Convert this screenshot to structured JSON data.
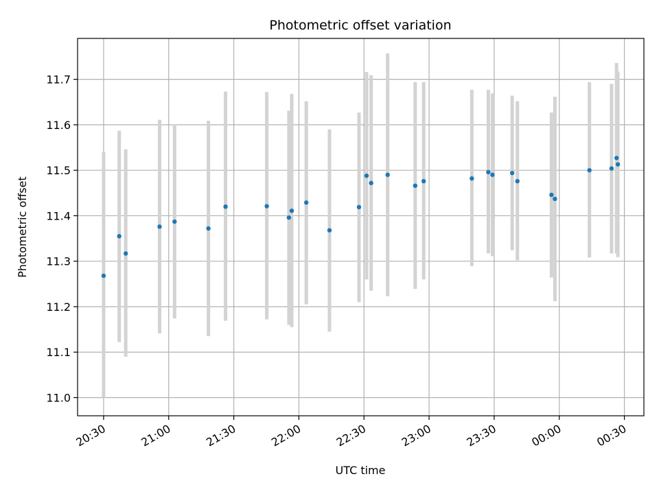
{
  "chart_data": {
    "type": "scatter",
    "title": "Photometric offset variation",
    "xlabel": "UTC time",
    "ylabel": "Photometric offset",
    "x_axis": {
      "type": "time",
      "range": [
        "20:18",
        "00:39"
      ],
      "ticks": [
        "20:30",
        "21:00",
        "21:30",
        "22:00",
        "22:30",
        "23:00",
        "23:30",
        "00:00",
        "00:30"
      ]
    },
    "y_axis": {
      "range": [
        10.96,
        11.79
      ],
      "ticks": [
        "11.0",
        "11.1",
        "11.2",
        "11.3",
        "11.4",
        "11.5",
        "11.6",
        "11.7"
      ]
    },
    "grid": true,
    "colors": {
      "point": "#1f77b4",
      "errorbar": "#d3d3d3",
      "grid": "#b0b0b0"
    },
    "series": [
      {
        "points": [
          {
            "x": "20:30:00",
            "y": 11.268,
            "err_low": 11.0,
            "err_high": 11.54
          },
          {
            "x": "20:37:12",
            "y": 11.355,
            "err_low": 11.122,
            "err_high": 11.587
          },
          {
            "x": "20:40:12",
            "y": 11.317,
            "err_low": 11.09,
            "err_high": 11.546
          },
          {
            "x": "20:55:48",
            "y": 11.376,
            "err_low": 11.141,
            "err_high": 11.611
          },
          {
            "x": "21:02:42",
            "y": 11.387,
            "err_low": 11.174,
            "err_high": 11.601
          },
          {
            "x": "21:18:18",
            "y": 11.372,
            "err_low": 11.135,
            "err_high": 11.609
          },
          {
            "x": "21:26:12",
            "y": 11.42,
            "err_low": 11.169,
            "err_high": 11.673
          },
          {
            "x": "21:45:12",
            "y": 11.421,
            "err_low": 11.172,
            "err_high": 11.672
          },
          {
            "x": "21:55:24",
            "y": 11.396,
            "err_low": 11.16,
            "err_high": 11.631
          },
          {
            "x": "21:56:42",
            "y": 11.411,
            "err_low": 11.155,
            "err_high": 11.668
          },
          {
            "x": "22:03:24",
            "y": 11.429,
            "err_low": 11.205,
            "err_high": 11.652
          },
          {
            "x": "22:14:06",
            "y": 11.368,
            "err_low": 11.145,
            "err_high": 11.59
          },
          {
            "x": "22:27:42",
            "y": 11.419,
            "err_low": 11.21,
            "err_high": 11.627
          },
          {
            "x": "22:31:12",
            "y": 11.488,
            "err_low": 11.26,
            "err_high": 11.716
          },
          {
            "x": "22:33:18",
            "y": 11.472,
            "err_low": 11.235,
            "err_high": 11.709
          },
          {
            "x": "22:40:54",
            "y": 11.49,
            "err_low": 11.223,
            "err_high": 11.757
          },
          {
            "x": "22:53:36",
            "y": 11.466,
            "err_low": 11.239,
            "err_high": 11.694
          },
          {
            "x": "22:57:30",
            "y": 11.476,
            "err_low": 11.26,
            "err_high": 11.694
          },
          {
            "x": "23:19:42",
            "y": 11.482,
            "err_low": 11.289,
            "err_high": 11.677
          },
          {
            "x": "23:27:18",
            "y": 11.496,
            "err_low": 11.317,
            "err_high": 11.677
          },
          {
            "x": "23:29:12",
            "y": 11.49,
            "err_low": 11.311,
            "err_high": 11.669
          },
          {
            "x": "23:38:18",
            "y": 11.494,
            "err_low": 11.324,
            "err_high": 11.664
          },
          {
            "x": "23:40:42",
            "y": 11.476,
            "err_low": 11.302,
            "err_high": 11.652
          },
          {
            "x": "23:56:24",
            "y": 11.446,
            "err_low": 11.264,
            "err_high": 11.627
          },
          {
            "x": "23:58:00",
            "y": 11.437,
            "err_low": 11.212,
            "err_high": 11.662
          },
          {
            "x": "00:13:54",
            "y": 11.5,
            "err_low": 11.308,
            "err_high": 11.694
          },
          {
            "x": "00:24:06",
            "y": 11.504,
            "err_low": 11.317,
            "err_high": 11.69
          },
          {
            "x": "00:26:24",
            "y": 11.527,
            "err_low": 11.317,
            "err_high": 11.736
          },
          {
            "x": "00:27:00",
            "y": 11.513,
            "err_low": 11.309,
            "err_high": 11.717
          }
        ]
      }
    ]
  }
}
